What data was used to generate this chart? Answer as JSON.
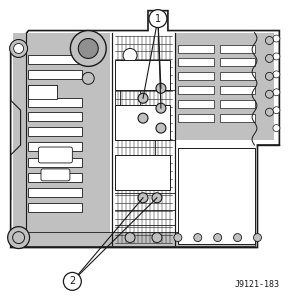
{
  "fig_width": 2.95,
  "fig_height": 2.99,
  "dpi": 100,
  "bg_color": "#ffffff",
  "figure_ref": "J9121-183",
  "callout1_label": "1",
  "callout2_label": "2",
  "lc": "#1a1a1a",
  "body_fill": "#d8d8d8",
  "white": "#ffffff",
  "light_gray": "#c0c0c0",
  "mid_gray": "#909090"
}
